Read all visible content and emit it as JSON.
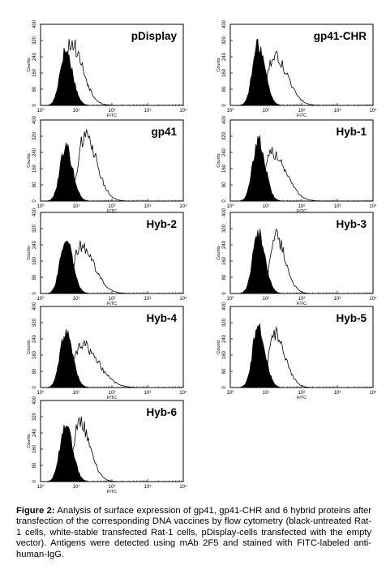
{
  "figure": {
    "caption_label": "Figure 2:",
    "caption_text": " Analysis of surface expression of gp41, gp41-CHR and 6 hybrid proteins after transfection of the corresponding DNA vaccines by flow cytometry (black-untreated Rat-1 cells, white-stable transfected Rat-1 cells, pDisplay-cells transfected with the empty vector). Antigens were detected using mAb 2F5 and stained with FITC-labeled anti-human-IgG."
  },
  "chart_data": [
    {
      "type": "area",
      "title": "pDisplay",
      "xlabel": "FITC",
      "ylabel": "Counts",
      "xscale": "log",
      "xlim": [
        1,
        10000
      ],
      "ylim": [
        0,
        400
      ],
      "x_ticks": [
        "10⁰",
        "10¹",
        "10²",
        "10³",
        "10⁴"
      ],
      "y_ticks": [
        "0",
        "80",
        "160",
        "240",
        "320",
        "400"
      ],
      "black_peak_x": 5,
      "black_peak_y": 270,
      "white_peak_x": 7,
      "white_peak_y": 310,
      "white_spread": 0.3
    },
    {
      "type": "area",
      "title": "gp41-CHR",
      "xlabel": "FITC",
      "ylabel": "Counts",
      "xscale": "log",
      "xlim": [
        1,
        10000
      ],
      "ylim": [
        0,
        400
      ],
      "x_ticks": [
        "10⁰",
        "10¹",
        "10²",
        "10³",
        "10⁴"
      ],
      "y_ticks": [
        "0",
        "80",
        "160",
        "240",
        "320",
        "400"
      ],
      "black_peak_x": 6,
      "black_peak_y": 300,
      "white_peak_x": 17,
      "white_peak_y": 240,
      "white_spread": 0.33
    },
    {
      "type": "area",
      "title": "gp41",
      "xlabel": "FITC",
      "ylabel": "Counts",
      "xscale": "log",
      "xlim": [
        1,
        10000
      ],
      "ylim": [
        0,
        400
      ],
      "x_ticks": [
        "10⁰",
        "10¹",
        "10²",
        "10³",
        "10⁴"
      ],
      "y_ticks": [
        "0",
        "80",
        "160",
        "240",
        "320",
        "400"
      ],
      "black_peak_x": 5,
      "black_peak_y": 270,
      "white_peak_x": 17,
      "white_peak_y": 330,
      "white_spread": 0.3
    },
    {
      "type": "area",
      "title": "Hyb-1",
      "xlabel": "FITC",
      "ylabel": "Counts",
      "xscale": "log",
      "xlim": [
        1,
        10000
      ],
      "ylim": [
        0,
        400
      ],
      "x_ticks": [
        "10⁰",
        "10¹",
        "10²",
        "10³",
        "10⁴"
      ],
      "y_ticks": [
        "0",
        "80",
        "160",
        "240",
        "320",
        "400"
      ],
      "black_peak_x": 6,
      "black_peak_y": 300,
      "white_peak_x": 15,
      "white_peak_y": 240,
      "white_spread": 0.35
    },
    {
      "type": "area",
      "title": "Hyb-2",
      "xlabel": "FITC",
      "ylabel": "Counts",
      "xscale": "log",
      "xlim": [
        1,
        10000
      ],
      "ylim": [
        0,
        400
      ],
      "x_ticks": [
        "10⁰",
        "10¹",
        "10²",
        "10³",
        "10⁴"
      ],
      "y_ticks": [
        "0",
        "80",
        "160",
        "240",
        "320",
        "400"
      ],
      "black_peak_x": 5,
      "black_peak_y": 270,
      "white_peak_x": 13,
      "white_peak_y": 230,
      "white_spread": 0.35
    },
    {
      "type": "area",
      "title": "Hyb-3",
      "xlabel": "FITC",
      "ylabel": "Counts",
      "xscale": "log",
      "xlim": [
        1,
        10000
      ],
      "ylim": [
        0,
        400
      ],
      "x_ticks": [
        "10⁰",
        "10¹",
        "10²",
        "10³",
        "10⁴"
      ],
      "y_ticks": [
        "0",
        "80",
        "160",
        "240",
        "320",
        "400"
      ],
      "black_peak_x": 6,
      "black_peak_y": 300,
      "white_peak_x": 18,
      "white_peak_y": 290,
      "white_spread": 0.25
    },
    {
      "type": "area",
      "title": "Hyb-4",
      "xlabel": "FITC",
      "ylabel": "Counts",
      "xscale": "log",
      "xlim": [
        1,
        10000
      ],
      "ylim": [
        0,
        400
      ],
      "x_ticks": [
        "10⁰",
        "10¹",
        "10²",
        "10³",
        "10⁴"
      ],
      "y_ticks": [
        "0",
        "80",
        "160",
        "240",
        "320",
        "400"
      ],
      "black_peak_x": 5,
      "black_peak_y": 270,
      "white_peak_x": 14,
      "white_peak_y": 210,
      "white_spread": 0.42
    },
    {
      "type": "area",
      "title": "Hyb-5",
      "xlabel": "FITC",
      "ylabel": "Counts",
      "xscale": "log",
      "xlim": [
        1,
        10000
      ],
      "ylim": [
        0,
        400
      ],
      "x_ticks": [
        "10⁰",
        "10¹",
        "10²",
        "10³",
        "10⁴"
      ],
      "y_ticks": [
        "0",
        "80",
        "160",
        "240",
        "320",
        "400"
      ],
      "black_peak_x": 6,
      "black_peak_y": 300,
      "white_peak_x": 17,
      "white_peak_y": 270,
      "white_spread": 0.27
    },
    {
      "type": "area",
      "title": "Hyb-6",
      "xlabel": "FITC",
      "ylabel": "Counts",
      "xscale": "log",
      "xlim": [
        1,
        10000
      ],
      "ylim": [
        0,
        400
      ],
      "x_ticks": [
        "10⁰",
        "10¹",
        "10²",
        "10³",
        "10⁴"
      ],
      "y_ticks": [
        "0",
        "80",
        "160",
        "240",
        "320",
        "400"
      ],
      "black_peak_x": 5,
      "black_peak_y": 290,
      "white_peak_x": 12,
      "white_peak_y": 300,
      "white_spread": 0.27
    }
  ]
}
